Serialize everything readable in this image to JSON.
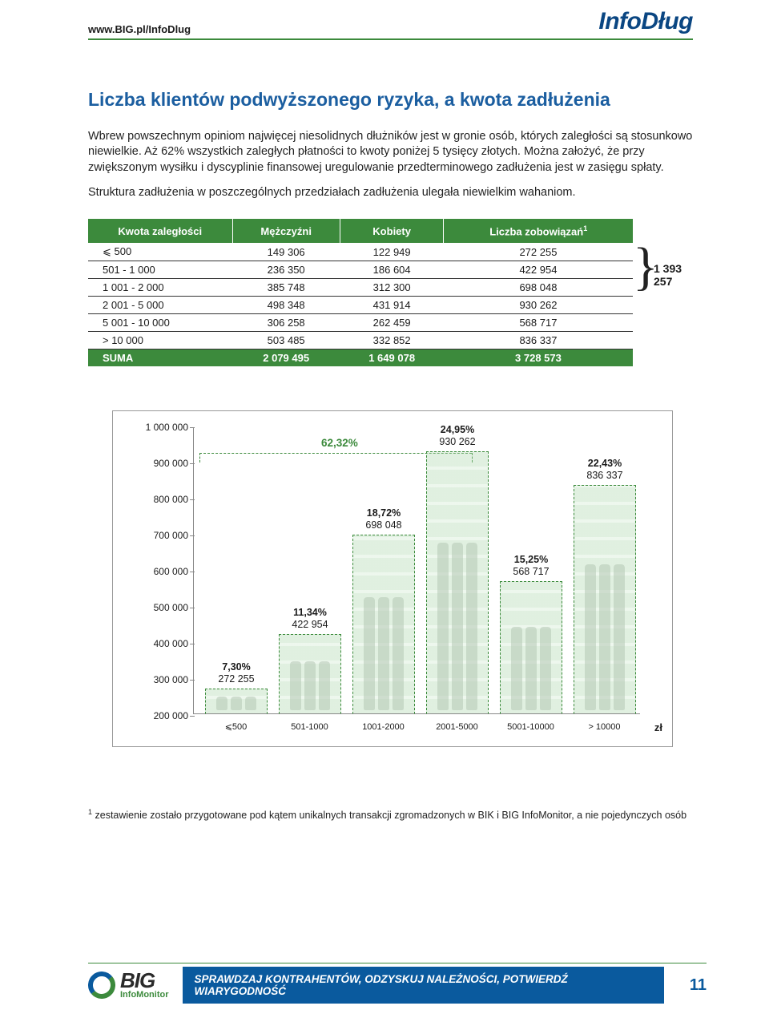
{
  "header": {
    "url": "www.BIG.pl/InfoDlug",
    "brand": "InfoDług"
  },
  "title": "Liczba klientów podwyższonego ryzyka, a kwota zadłużenia",
  "paragraphs": [
    "Wbrew powszechnym opiniom najwięcej niesolidnych dłużników jest w gronie osób, których zaległości są stosunkowo niewielkie. Aż 62% wszystkich zaległych płatności to kwoty poniżej 5 tysięcy złotych. Można założyć, że przy zwiększonym wysiłku i dyscyplinie finansowej uregulowanie przedterminowego zadłużenia jest w zasięgu spłaty.",
    "Struktura zadłużenia w poszczególnych przedziałach zadłużenia ulegała niewielkim wahaniom."
  ],
  "table": {
    "headers": [
      "Kwota zaległości",
      "Mężczyźni",
      "Kobiety",
      "Liczba zobowiązań"
    ],
    "header_sup": "1",
    "rows": [
      [
        "⩽ 500",
        "149 306",
        "122 949",
        "272 255"
      ],
      [
        "501 - 1 000",
        "236 350",
        "186 604",
        "422 954"
      ],
      [
        "1 001 - 2 000",
        "385 748",
        "312 300",
        "698 048"
      ],
      [
        "2 001 - 5 000",
        "498 348",
        "431 914",
        "930 262"
      ],
      [
        "5 001 - 10 000",
        "306 258",
        "262 459",
        "568 717"
      ],
      [
        "> 10 000",
        "503 485",
        "332 852",
        "836 337"
      ]
    ],
    "sum_label": "SUMA",
    "sum": [
      "2 079 495",
      "1 649 078",
      "3 728 573"
    ],
    "brace_total": "1 393 257",
    "header_bg": "#3c8a3c"
  },
  "chart": {
    "type": "bar",
    "ylim": [
      200000,
      1000000
    ],
    "yticks": [
      "1 000 000",
      "900 000",
      "800 000",
      "700 000",
      "600 000",
      "500 000",
      "400 000",
      "300 000",
      "200 000"
    ],
    "ytick_values": [
      1000000,
      900000,
      800000,
      700000,
      600000,
      500000,
      400000,
      300000,
      200000
    ],
    "categories": [
      "⩽500",
      "501-1000",
      "1001-2000",
      "2001-5000",
      "5001-10000",
      "> 10000"
    ],
    "values": [
      272255,
      422954,
      698048,
      930262,
      568717,
      836337
    ],
    "percent_labels": [
      "7,30%",
      "11,34%",
      "18,72%",
      "24,95%",
      "15,25%",
      "22,43%"
    ],
    "value_labels": [
      "272 255",
      "422 954",
      "698 048",
      "930 262",
      "568 717",
      "836 337"
    ],
    "bracket_label": "62,32%",
    "bar_border": "#3a8a3a",
    "x_unit": "zł"
  },
  "footnote": "zestawienie zostało przygotowane pod kątem unikalnych transakcji zgromadzonych w BIK i BIG InfoMonitor, a nie pojedynczych osób",
  "footnote_num": "1",
  "footer": {
    "logo_big": "BIG",
    "logo_sub": "InfoMonitor",
    "bar": "SPRAWDZAJ KONTRAHENTÓW, ODZYSKUJ NALEŻNOŚCI, POTWIERDŹ WIARYGODNOŚĆ",
    "page": "11"
  }
}
